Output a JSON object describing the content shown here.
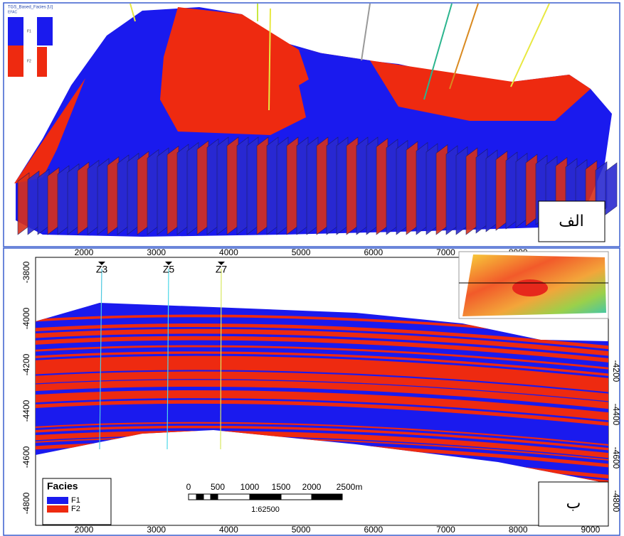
{
  "panel_a": {
    "title": "TGS_Based_Facies [U]",
    "subtitle": "EFAC",
    "legend": [
      "F1",
      "F2"
    ],
    "label": "الف"
  },
  "panel_b": {
    "x_ticks_top": [
      "2000",
      "3000",
      "4000",
      "5000",
      "6000",
      "7000",
      "8000"
    ],
    "x_ticks_bottom": [
      "2000",
      "3000",
      "4000",
      "5000",
      "6000",
      "7000",
      "8000",
      "9000"
    ],
    "y_ticks_left": [
      "-3800",
      "-4000",
      "-4200",
      "-4400",
      "-4600",
      "-4800"
    ],
    "y_ticks_right": [
      "-4200",
      "-4400",
      "-4600",
      "-4800"
    ],
    "wells": [
      "Z3",
      "Z5",
      "Z7"
    ],
    "legend": {
      "title": "Facies",
      "items": [
        "F1",
        "F2"
      ]
    },
    "scale_bar": {
      "ticks": [
        "0",
        "500",
        "1000",
        "1500",
        "2000",
        "2500m"
      ],
      "ratio": "1:62500"
    },
    "label": "ب"
  }
}
